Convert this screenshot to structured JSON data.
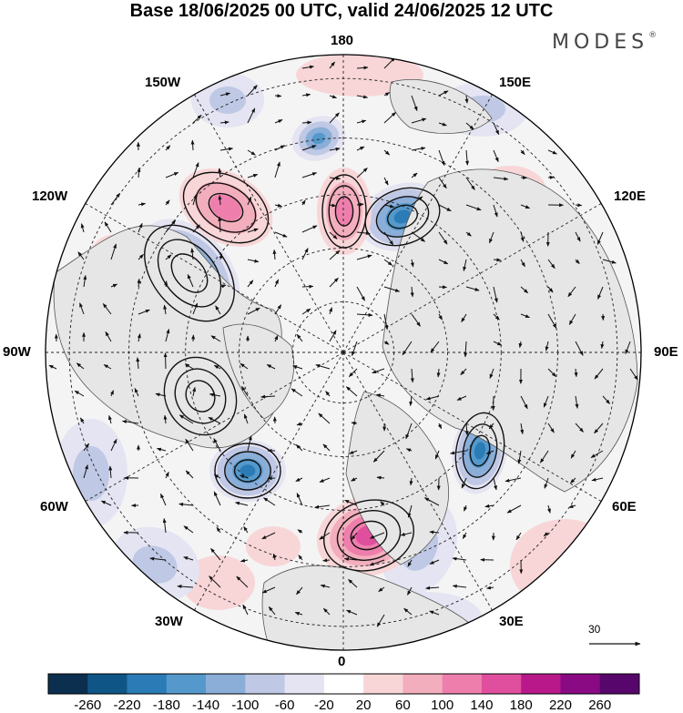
{
  "title": "Base 18/06/2025 00 UTC, valid 24/06/2025 12 UTC",
  "brand": "MODES",
  "brand_mark": "®",
  "longitude_labels": {
    "l180": "180",
    "l150e": "150E",
    "l120e": "120E",
    "l90e": "90E",
    "l60e": "60E",
    "l30e": "30E",
    "l0": "0",
    "l30w": "30W",
    "l60w": "60W",
    "l90w": "90W",
    "l120w": "120W",
    "l150w": "150W"
  },
  "reference_vector_label": "30",
  "colorbar": {
    "labels": [
      "-260",
      "-220",
      "-180",
      "-140",
      "-100",
      "-60",
      "-20",
      "20",
      "60",
      "100",
      "140",
      "180",
      "220",
      "260"
    ],
    "colors": [
      "#0d2f4f",
      "#0f5687",
      "#2b7cb6",
      "#5599cc",
      "#8aaed8",
      "#bfc8e4",
      "#e4e4f2",
      "#ffffff",
      "#f8d6d8",
      "#f3aebd",
      "#ee7fac",
      "#e04f9e",
      "#b8188a",
      "#8a0a84",
      "#57066b"
    ]
  },
  "map_colors": {
    "land_shade": "#e6e6e6",
    "coast": "#555555",
    "grid": "#222222",
    "vector": "#111111",
    "contour": "#111111"
  }
}
